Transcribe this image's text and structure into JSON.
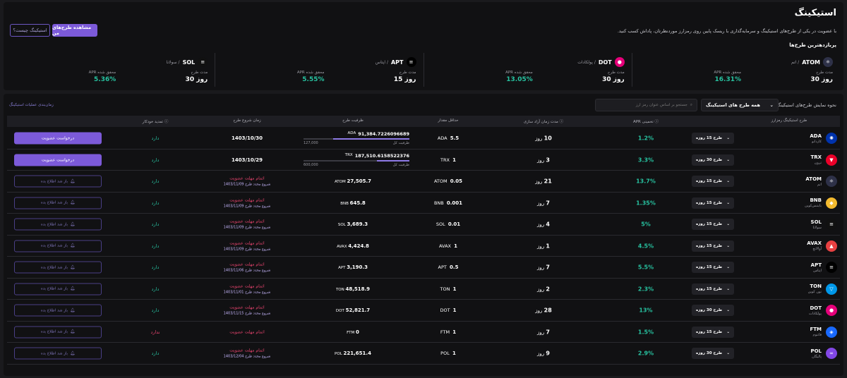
{
  "header": {
    "title": "استیکینگ",
    "description": "با عضویت در یکی از طرح‌های استیکینگ و سرمایه‌گذاری با ریسک پایین روی رمزارز موردنظرتان، پاداش کسب کنید.",
    "my_plans_button": "مشاهده طرح‌های من",
    "what_is_button": "استیکینگ چیست؟",
    "popular_heading": "پربازدهترین طرح‌ها"
  },
  "top_plans": [
    {
      "symbol": "ATOM",
      "fa": "/ اتم",
      "duration_label": "مدت طرح",
      "duration": "30 روز",
      "apr_label": "APR محقق شده",
      "apr": "16.31%",
      "color": "#2e3148",
      "glyph": "⚛"
    },
    {
      "symbol": "DOT",
      "fa": "/ پولکادات",
      "duration_label": "مدت طرح",
      "duration": "30 روز",
      "apr_label": "APR محقق شده",
      "apr": "13.05%",
      "color": "#e6007a",
      "glyph": "●"
    },
    {
      "symbol": "APT",
      "fa": "/ اپتاس",
      "duration_label": "مدت طرح",
      "duration": "15 روز",
      "apr_label": "APR محقق شده",
      "apr": "5.55%",
      "color": "#000000",
      "glyph": "≡"
    },
    {
      "symbol": "SOL",
      "fa": "/ سولانا",
      "duration_label": "مدت طرح",
      "duration": "30 روز",
      "apr_label": "APR محقق شده",
      "apr": "5.36%",
      "color": "#111111",
      "glyph": "≡"
    }
  ],
  "toolbar": {
    "display_label": "نحوه نمایش طرح‌های استیکینگ:",
    "display_value": "همه طرح های استیکینگ",
    "search_placeholder": "جستجو بر اساس عنوان رمز ارز",
    "rules_link": "زمان‌بندی عملیات استیکینگ"
  },
  "columns": {
    "asset": "طرح استیکینگ رمزارز",
    "apr": "APR تخمینی",
    "lock": "مدت زمان آزاد سازی",
    "min": "حداقل مقدار",
    "capacity": "ظرفیت طرح",
    "start": "زمان شروع طرح",
    "auto": "تمدید خودکار"
  },
  "common": {
    "join_button": "درخواست عضویت",
    "notify_button": "باز شد اطلاع بده",
    "ended_text": "اتمام مهلت عضویت",
    "total_capacity": "ظرفیت کل",
    "day": "روز"
  },
  "rows": [
    {
      "symbol": "ADA",
      "fa": "کاردانو",
      "color": "#0033ad",
      "glyph": "✺",
      "plan": "طرح 15 روزه",
      "apr": "1.2%",
      "lock": "10",
      "min_val": "5.5",
      "min_sym": "ADA",
      "cap_bar": true,
      "cap_filled": "91,384.7226096689",
      "cap_sym": "ADA",
      "cap_total": "127,000",
      "cap_pct": 0.72,
      "start": "1403/10/30",
      "start_new": "",
      "auto": "دارد",
      "auto_yes": true,
      "action": "join"
    },
    {
      "symbol": "TRX",
      "fa": "ترون",
      "color": "#eb0029",
      "glyph": "▼",
      "plan": "طرح 30 روزه",
      "apr": "3.3%",
      "lock": "3",
      "min_val": "1",
      "min_sym": "TRX",
      "cap_bar": true,
      "cap_filled": "187,510.6158522376",
      "cap_sym": "TRX",
      "cap_total": "600,000",
      "cap_pct": 0.31,
      "start": "1403/10/29",
      "start_new": "",
      "auto": "دارد",
      "auto_yes": true,
      "action": "join"
    },
    {
      "symbol": "ATOM",
      "fa": "اتم",
      "color": "#2e3148",
      "glyph": "⚛",
      "plan": "طرح 15 روزه",
      "apr": "13.7%",
      "lock": "21",
      "min_val": "0.05",
      "min_sym": "ATOM",
      "cap_bar": false,
      "cap_filled": "27,505.7",
      "cap_sym": "ATOM",
      "start": "",
      "start_new": "شروع مجدد طرح 1403/11/09",
      "auto": "دارد",
      "auto_yes": true,
      "action": "notify"
    },
    {
      "symbol": "BNB",
      "fa": "بایننس‌کوین",
      "color": "#f3ba2f",
      "glyph": "◆",
      "plan": "طرح 15 روزه",
      "apr": "1.35%",
      "lock": "7",
      "min_val": "0.001",
      "min_sym": "BNB",
      "cap_bar": false,
      "cap_filled": "645.8",
      "cap_sym": "BNB",
      "start": "",
      "start_new": "شروع مجدد طرح 1403/11/09",
      "auto": "دارد",
      "auto_yes": true,
      "action": "notify"
    },
    {
      "symbol": "SOL",
      "fa": "سولانا",
      "color": "#111111",
      "glyph": "≡",
      "plan": "طرح 15 روزه",
      "apr": "5%",
      "lock": "4",
      "min_val": "0.01",
      "min_sym": "SOL",
      "cap_bar": false,
      "cap_filled": "3,689.3",
      "cap_sym": "SOL",
      "start": "",
      "start_new": "شروع مجدد طرح 1403/11/09",
      "auto": "دارد",
      "auto_yes": true,
      "action": "notify"
    },
    {
      "symbol": "AVAX",
      "fa": "آوالانچ",
      "color": "#e84142",
      "glyph": "▲",
      "plan": "طرح 15 روزه",
      "apr": "4.5%",
      "lock": "1",
      "min_val": "1",
      "min_sym": "AVAX",
      "cap_bar": false,
      "cap_filled": "4,424.8",
      "cap_sym": "AVAX",
      "start": "",
      "start_new": "شروع مجدد طرح 1403/11/09",
      "auto": "دارد",
      "auto_yes": true,
      "action": "notify"
    },
    {
      "symbol": "APT",
      "fa": "اپتاس",
      "color": "#000000",
      "glyph": "≡",
      "plan": "طرح 15 روزه",
      "apr": "5.5%",
      "lock": "7",
      "min_val": "0.5",
      "min_sym": "APT",
      "cap_bar": false,
      "cap_filled": "3,190.3",
      "cap_sym": "APT",
      "start": "",
      "start_new": "شروع مجدد طرح 1403/11/06",
      "auto": "دارد",
      "auto_yes": true,
      "action": "notify"
    },
    {
      "symbol": "TON",
      "fa": "تون کوین",
      "color": "#0098ea",
      "glyph": "▽",
      "plan": "طرح 15 روزه",
      "apr": "2.3%",
      "lock": "2",
      "min_val": "1",
      "min_sym": "TON",
      "cap_bar": false,
      "cap_filled": "48,518.9",
      "cap_sym": "TON",
      "start": "",
      "start_new": "شروع مجدد طرح 1403/11/01",
      "auto": "دارد",
      "auto_yes": true,
      "action": "notify"
    },
    {
      "symbol": "DOT",
      "fa": "پولکادات",
      "color": "#e6007a",
      "glyph": "●",
      "plan": "طرح 30 روزه",
      "apr": "13%",
      "lock": "28",
      "min_val": "1",
      "min_sym": "DOT",
      "cap_bar": false,
      "cap_filled": "52,821.7",
      "cap_sym": "DOT",
      "start": "",
      "start_new": "شروع مجدد طرح 1403/11/15",
      "auto": "دارد",
      "auto_yes": true,
      "action": "notify"
    },
    {
      "symbol": "FTM",
      "fa": "فانتوم",
      "color": "#1969ff",
      "glyph": "◈",
      "plan": "طرح 15 روزه",
      "apr": "1.5%",
      "lock": "7",
      "min_val": "1",
      "min_sym": "FTM",
      "cap_bar": false,
      "cap_filled": "0",
      "cap_sym": "FTM",
      "start": "",
      "start_new": "",
      "auto": "ندارد",
      "auto_yes": false,
      "action": "notify"
    },
    {
      "symbol": "POL",
      "fa": "پالیگان",
      "color": "#8247e5",
      "glyph": "∞",
      "plan": "طرح 30 روزه",
      "apr": "2.9%",
      "lock": "9",
      "min_val": "1",
      "min_sym": "POL",
      "cap_bar": false,
      "cap_filled": "221,651.4",
      "cap_sym": "POL",
      "start": "",
      "start_new": "شروع مجدد طرح 1403/12/04",
      "auto": "دارد",
      "auto_yes": true,
      "action": "notify"
    }
  ]
}
